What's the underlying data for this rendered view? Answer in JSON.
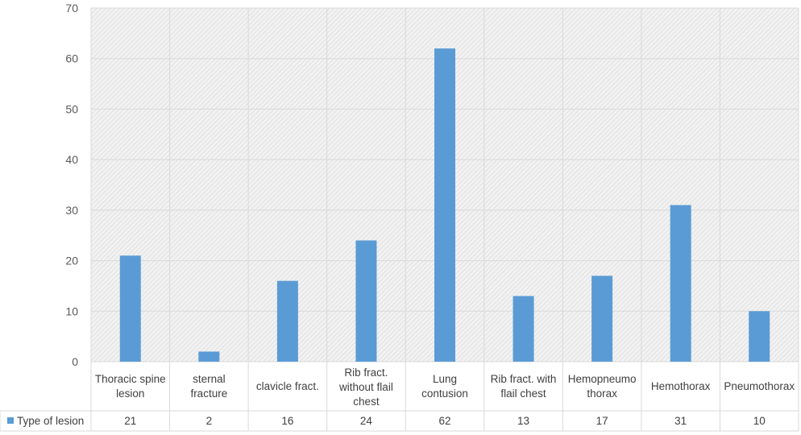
{
  "chart_data": {
    "type": "bar",
    "title": "",
    "xlabel": "",
    "ylabel": "",
    "ylim": [
      0,
      70
    ],
    "yticks": [
      "0",
      "10",
      "20",
      "30",
      "40",
      "50",
      "60",
      "70"
    ],
    "grid": true,
    "legend": "bottom-left (data table)",
    "bar_color": "#5b9bd5",
    "categories": [
      [
        "Thoracic spine",
        "lesion"
      ],
      [
        "sternal",
        "fracture"
      ],
      [
        "clavicle fract."
      ],
      [
        "Rib fract.",
        "without flail",
        "chest"
      ],
      [
        "Lung",
        "contusion"
      ],
      [
        "Rib fract. with",
        "flail chest"
      ],
      [
        "Hemopneumo",
        "thorax"
      ],
      [
        "Hemothorax"
      ],
      [
        "Pneumothorax"
      ]
    ],
    "series": [
      {
        "name": "Type of lesion",
        "values": [
          21,
          2,
          16,
          24,
          62,
          13,
          17,
          31,
          10
        ]
      }
    ]
  }
}
